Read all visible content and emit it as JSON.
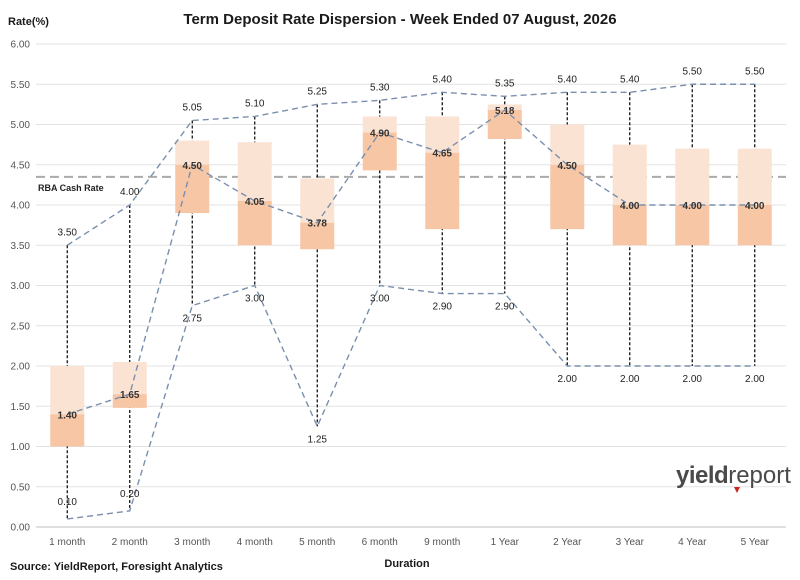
{
  "chart_data": {
    "type": "box",
    "title": "Term Deposit Rate Dispersion - Week Ended 07 August, 2026",
    "xlabel": "Duration",
    "ylabel": "Rate(%)",
    "ylim": [
      0,
      6
    ],
    "yticks": [
      "0.00",
      "0.50",
      "1.00",
      "1.50",
      "2.00",
      "2.50",
      "3.00",
      "3.50",
      "4.00",
      "4.50",
      "5.00",
      "5.50",
      "6.00"
    ],
    "grid": true,
    "categories": [
      "1 month",
      "2 month",
      "3 month",
      "4 month",
      "5 month",
      "6 month",
      "9 month",
      "1  Year",
      "2  Year",
      "3  Year",
      "4  Year",
      "5  Year"
    ],
    "max": [
      3.5,
      4.0,
      5.05,
      5.1,
      5.25,
      5.3,
      5.4,
      5.35,
      5.4,
      5.4,
      5.5,
      5.5
    ],
    "min": [
      0.1,
      0.2,
      2.75,
      3.0,
      1.25,
      3.0,
      2.9,
      2.9,
      2.0,
      2.0,
      2.0,
      2.0
    ],
    "median": [
      1.4,
      1.65,
      4.5,
      4.05,
      3.78,
      4.9,
      4.65,
      5.18,
      4.5,
      4.0,
      4.0,
      4.0
    ],
    "q1": [
      1.0,
      1.48,
      3.9,
      3.5,
      3.45,
      4.43,
      3.7,
      4.82,
      3.7,
      3.5,
      3.5,
      3.5
    ],
    "q3": [
      2.0,
      2.05,
      4.8,
      4.78,
      4.33,
      5.1,
      5.1,
      5.25,
      5.0,
      4.75,
      4.7,
      4.7
    ],
    "max_labels": [
      "3.50",
      "4.00",
      "5.05",
      "5.10",
      "5.25",
      "5.30",
      "5.40",
      "5.35",
      "5.40",
      "5.40",
      "5.50",
      "5.50"
    ],
    "min_labels": [
      "0.10",
      "0.20",
      "2.75",
      "3.00",
      "1.25",
      "3.00",
      "2.90",
      "2.90",
      "2.00",
      "2.00",
      "2.00",
      "2.00"
    ],
    "median_labels": [
      "1.40",
      "1.65",
      "4.50",
      "4.05",
      "3.78",
      "4.90",
      "4.65",
      "5.18",
      "4.50",
      "4.00",
      "4.00",
      "4.00"
    ],
    "reference_line": {
      "label": "RBA Cash Rate",
      "value": 4.35
    },
    "colors": {
      "upper_box": "#fbe3d4",
      "lower_box": "#f7c6a5",
      "whisker": "#000000",
      "trend_line": "#7a8fae",
      "reference": "#aaaaaa",
      "grid": "#e3e3e3"
    }
  },
  "source": "Source: YieldReport, Foresight Analytics",
  "logo": {
    "bold": "yield",
    "rest": "report",
    "accent": "#cc2222"
  }
}
